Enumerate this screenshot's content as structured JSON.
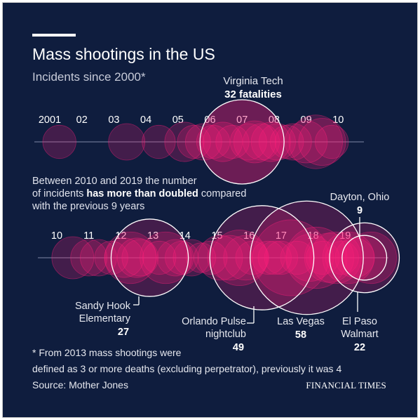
{
  "title": "Mass shootings in the US",
  "subtitle": "Incidents since 2000*",
  "colors": {
    "background": "#0f1d3e",
    "bubble": "#ff1f7a",
    "text": "#ffffff",
    "muted": "#c7cbd9"
  },
  "intro_text": {
    "line1": "Between 2010 and 2019 the number",
    "line2_before": "of incidents ",
    "line2_bold": "has more than doubled",
    "line2_after": " compared",
    "line3": "with the previous 9 years"
  },
  "footnote": {
    "line1": "* From 2013 mass shootings were",
    "line2": "defined as 3 or more deaths (excluding perpetrator), previously it was 4",
    "source": "Source: Mother Jones",
    "publisher": "FINANCIAL TIMES"
  },
  "chart_data": [
    {
      "type": "scatter",
      "title": "",
      "axis": "year",
      "tick_labels": [
        "2001",
        "02",
        "03",
        "04",
        "05",
        "06",
        "07",
        "08",
        "09",
        "10"
      ],
      "encoding": "circle area = fatalities",
      "highlighted": [
        {
          "name": "Virginia Tech",
          "label_value": "32 fatalities",
          "year": 2007,
          "fatalities": 32
        }
      ],
      "incidents": [
        {
          "year": 2001.3,
          "fatalities": 5
        },
        {
          "year": 2003.4,
          "fatalities": 6
        },
        {
          "year": 2004.4,
          "fatalities": 5
        },
        {
          "year": 2005.2,
          "fatalities": 7
        },
        {
          "year": 2005.5,
          "fatalities": 5
        },
        {
          "year": 2005.8,
          "fatalities": 6
        },
        {
          "year": 2006.1,
          "fatalities": 5
        },
        {
          "year": 2006.4,
          "fatalities": 7
        },
        {
          "year": 2006.7,
          "fatalities": 5
        },
        {
          "year": 2007.0,
          "fatalities": 32
        },
        {
          "year": 2007.2,
          "fatalities": 6
        },
        {
          "year": 2007.4,
          "fatalities": 8
        },
        {
          "year": 2007.6,
          "fatalities": 6
        },
        {
          "year": 2007.9,
          "fatalities": 7
        },
        {
          "year": 2008.1,
          "fatalities": 6
        },
        {
          "year": 2008.4,
          "fatalities": 5
        },
        {
          "year": 2008.6,
          "fatalities": 6
        },
        {
          "year": 2009.0,
          "fatalities": 8
        },
        {
          "year": 2009.3,
          "fatalities": 13
        },
        {
          "year": 2009.5,
          "fatalities": 10
        },
        {
          "year": 2009.8,
          "fatalities": 5
        }
      ]
    },
    {
      "type": "scatter",
      "title": "",
      "axis": "year",
      "tick_labels": [
        "10",
        "11",
        "12",
        "13",
        "14",
        "15",
        "16",
        "17",
        "18",
        "19"
      ],
      "encoding": "circle area = fatalities",
      "highlighted": [
        {
          "name": "Sandy Hook Elementary",
          "year": 2012.9,
          "fatalities": 27
        },
        {
          "name": "Orlando Pulse nightclub",
          "year": 2016.4,
          "fatalities": 49
        },
        {
          "name": "Las Vegas",
          "year": 2017.8,
          "fatalities": 58
        },
        {
          "name": "Dayton, Ohio",
          "year": 2019.6,
          "fatalities": 9
        },
        {
          "name": "El Paso Walmart",
          "year": 2019.6,
          "fatalities": 22
        }
      ],
      "incidents": [
        {
          "year": 2010.5,
          "fatalities": 8
        },
        {
          "year": 2011.0,
          "fatalities": 6
        },
        {
          "year": 2011.3,
          "fatalities": 6
        },
        {
          "year": 2011.7,
          "fatalities": 5
        },
        {
          "year": 2012.1,
          "fatalities": 7
        },
        {
          "year": 2012.3,
          "fatalities": 12
        },
        {
          "year": 2012.5,
          "fatalities": 7
        },
        {
          "year": 2012.6,
          "fatalities": 6
        },
        {
          "year": 2013.2,
          "fatalities": 5
        },
        {
          "year": 2013.4,
          "fatalities": 12
        },
        {
          "year": 2013.7,
          "fatalities": 6
        },
        {
          "year": 2013.9,
          "fatalities": 5
        },
        {
          "year": 2014.2,
          "fatalities": 6
        },
        {
          "year": 2014.5,
          "fatalities": 4
        },
        {
          "year": 2014.8,
          "fatalities": 5
        },
        {
          "year": 2015.1,
          "fatalities": 9
        },
        {
          "year": 2015.4,
          "fatalities": 9
        },
        {
          "year": 2015.7,
          "fatalities": 14
        },
        {
          "year": 2015.9,
          "fatalities": 9
        },
        {
          "year": 2016.1,
          "fatalities": 5
        },
        {
          "year": 2016.6,
          "fatalities": 5
        },
        {
          "year": 2016.8,
          "fatalities": 5
        },
        {
          "year": 2017.0,
          "fatalities": 5
        },
        {
          "year": 2017.3,
          "fatalities": 26
        },
        {
          "year": 2017.5,
          "fatalities": 5
        },
        {
          "year": 2017.9,
          "fatalities": 10
        },
        {
          "year": 2018.1,
          "fatalities": 17
        },
        {
          "year": 2018.3,
          "fatalities": 5
        },
        {
          "year": 2018.5,
          "fatalities": 11
        },
        {
          "year": 2018.7,
          "fatalities": 12
        },
        {
          "year": 2018.9,
          "fatalities": 5
        },
        {
          "year": 2019.1,
          "fatalities": 12
        },
        {
          "year": 2019.3,
          "fatalities": 7
        },
        {
          "year": 2019.8,
          "fatalities": 12
        }
      ]
    }
  ],
  "annotations": {
    "virginia_tech": {
      "name": "Virginia Tech",
      "value": "32 fatalities"
    },
    "sandy_hook": {
      "line1": "Sandy Hook",
      "line2": "Elementary",
      "value": "27"
    },
    "orlando": {
      "line1": "Orlando Pulse",
      "line2": "nightclub",
      "value": "49"
    },
    "las_vegas": {
      "line1": "Las Vegas",
      "value": "58"
    },
    "dayton": {
      "line1": "Dayton, Ohio",
      "value": "9"
    },
    "el_paso": {
      "line1": "El Paso",
      "line2": "Walmart",
      "value": "22"
    }
  }
}
